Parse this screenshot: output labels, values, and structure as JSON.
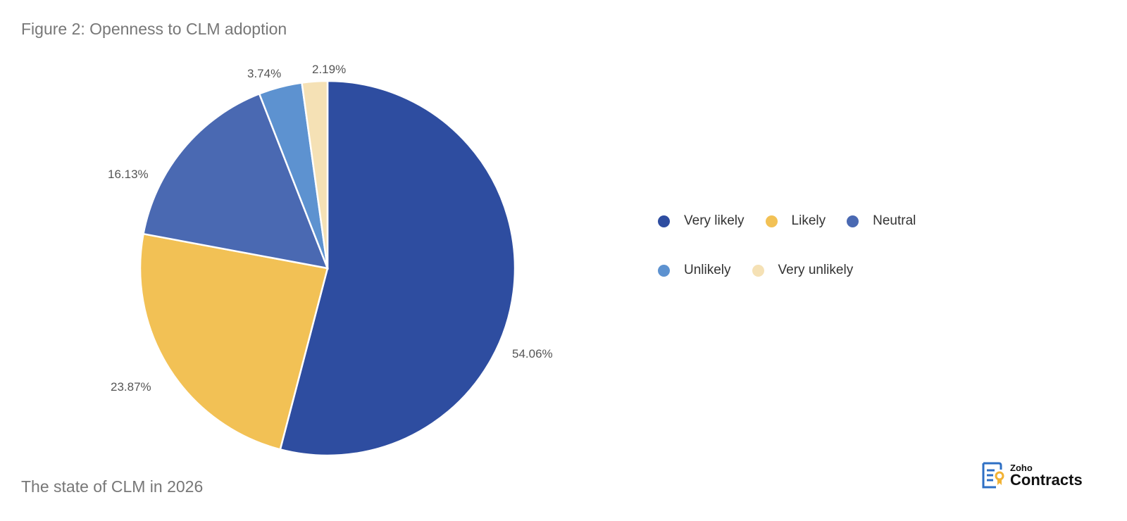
{
  "header": {
    "title": "Figure 2: Openness to CLM adoption"
  },
  "footer": {
    "text": "The state of CLM in 2026"
  },
  "logo": {
    "brand": "Zoho",
    "product": "Contracts"
  },
  "legend": {
    "items": [
      {
        "label": "Very likely",
        "color": "#2E4DA0"
      },
      {
        "label": "Likely",
        "color": "#F2C155"
      },
      {
        "label": "Neutral",
        "color": "#4A69B2"
      },
      {
        "label": "Unlikely",
        "color": "#5D92D0"
      },
      {
        "label": "Very unlikely",
        "color": "#F5E1B5"
      }
    ]
  },
  "labels": {
    "very_likely": "54.06%",
    "likely": "23.87%",
    "neutral": "16.13%",
    "unlikely": "3.74%",
    "very_unlikely": "2.19%"
  },
  "chart_data": {
    "type": "pie",
    "title": "Figure 2: Openness to CLM adoption",
    "categories": [
      "Very likely",
      "Likely",
      "Neutral",
      "Unlikely",
      "Very unlikely"
    ],
    "values": [
      54.06,
      23.87,
      16.13,
      3.74,
      2.19
    ],
    "colors": [
      "#2E4DA0",
      "#F2C155",
      "#4A69B2",
      "#5D92D0",
      "#F5E1B5"
    ],
    "start_angle": "12 o'clock, clockwise",
    "legend_position": "right",
    "xlabel": "",
    "ylabel": ""
  }
}
